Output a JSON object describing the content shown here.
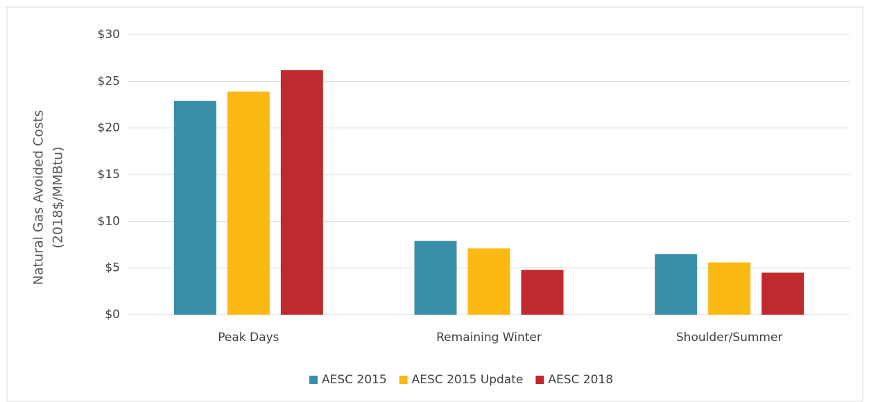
{
  "chart_data": {
    "type": "bar",
    "ylabel": [
      "Natural Gas Avoided Costs",
      "(2018$/MMBtu)"
    ],
    "categories": [
      "Peak Days",
      "Remaining Winter",
      "Shoulder/Summer"
    ],
    "series": [
      {
        "name": "AESC 2015",
        "color": "#3a8fa8",
        "values": [
          22.9,
          7.9,
          6.5
        ]
      },
      {
        "name": "AESC 2015 Update",
        "color": "#fdb913",
        "values": [
          23.9,
          7.1,
          5.6
        ]
      },
      {
        "name": "AESC 2018",
        "color": "#c0292d",
        "values": [
          26.2,
          4.8,
          4.5
        ]
      }
    ],
    "ylim": [
      0,
      30
    ],
    "yticks": [
      {
        "value": 0,
        "label": "$0"
      },
      {
        "value": 5,
        "label": "$5"
      },
      {
        "value": 10,
        "label": "$10"
      },
      {
        "value": 15,
        "label": "$15"
      },
      {
        "value": 20,
        "label": "$20"
      },
      {
        "value": 25,
        "label": "$25"
      },
      {
        "value": 30,
        "label": "$30"
      }
    ],
    "grid": true,
    "legend": "bottom"
  }
}
